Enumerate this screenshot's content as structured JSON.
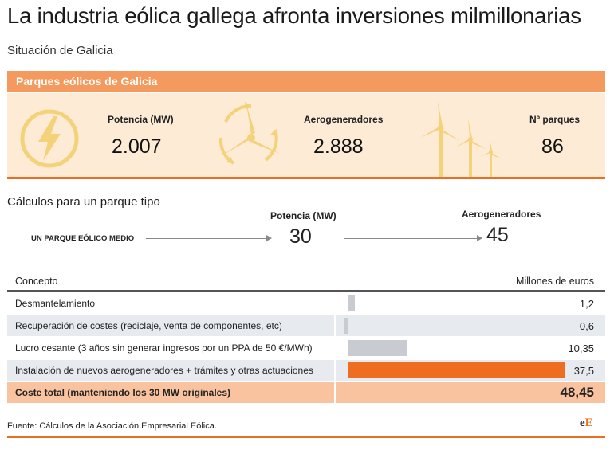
{
  "title": "La industria eólica gallega afronta inversiones milmillonarias",
  "subtitle": "Situación de Galicia",
  "section": {
    "label": "Parques eólicos de Galicia"
  },
  "stats": [
    {
      "label": "Potencia (MW)",
      "value": "2.007",
      "icon": "lightning-bolt-icon"
    },
    {
      "label": "Aerogeneradores",
      "value": "2.888",
      "icon": "turbine-rotor-icon"
    },
    {
      "label": "Nº parques",
      "value": "86",
      "icon": "wind-farm-icon"
    }
  ],
  "calc": {
    "title": "Cálculos para un parque tipo",
    "start_label": "UN PARQUE EÓLICO MEDIO",
    "power_label": "Potencia (MW)",
    "power_value": "30",
    "turbines_label": "Aerogeneradores",
    "turbines_value": "45"
  },
  "table": {
    "col_concept": "Concepto",
    "col_value": "Millones de euros",
    "rows": [
      {
        "label": "Desmantelamiento",
        "value": "1,2",
        "amount": 1.2
      },
      {
        "label": "Recuperación de costes (reciclaje, venta de componentes, etc)",
        "value": "-0,6",
        "amount": -0.6
      },
      {
        "label": "Lucro cesante (3 años sin generar ingresos por un PPA de 50 €/MWh)",
        "value": "10,35",
        "amount": 10.35
      },
      {
        "label": "Instalación de nuevos aerogeneradores + trámites y otras actuaciones",
        "value": "37,5",
        "amount": 37.5
      }
    ],
    "total": {
      "label": "Coste total (manteniendo los 30 MW originales)",
      "value": "48,45"
    }
  },
  "colors": {
    "accent": "#ee6d21",
    "band": "#f59a5e",
    "panel": "#fdebd6",
    "icon": "#f4d27a",
    "bar_grey": "#c8cbd0"
  },
  "footer": {
    "source": "Fuente: Cálculos de la Asociación Empresarial Eólica.",
    "logo_e1": "e",
    "logo_e2": "E"
  }
}
